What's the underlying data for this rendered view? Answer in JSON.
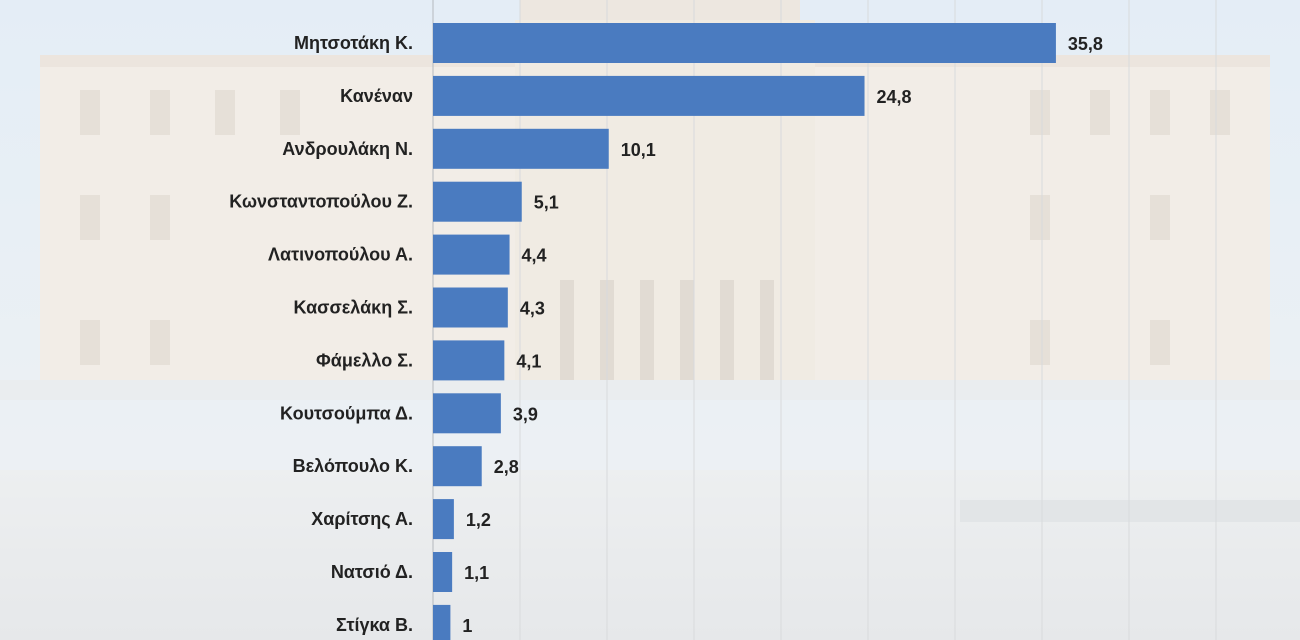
{
  "chart_data": {
    "type": "bar",
    "orientation": "horizontal",
    "categories": [
      "Μητσοτάκη Κ.",
      "Κανέναν",
      "Ανδρουλάκη Ν.",
      "Κωνσταντοπούλου Ζ.",
      "Λατινοπούλου Α.",
      "Κασσελάκη Σ.",
      "Φάμελλο Σ.",
      "Κουτσούμπα Δ.",
      "Βελόπουλο Κ.",
      "Χαρίτσης Α.",
      "Νατσιό Δ.",
      "Στίγκα Β."
    ],
    "values": [
      35.8,
      24.8,
      10.1,
      5.1,
      4.4,
      4.3,
      4.1,
      3.9,
      2.8,
      1.2,
      1.1,
      1
    ],
    "value_labels": [
      "35,8",
      "24,8",
      "10,1",
      "5,1",
      "4,4",
      "4,3",
      "4,1",
      "3,9",
      "2,8",
      "1,2",
      "1,1",
      "1"
    ],
    "xlim": [
      0,
      50
    ],
    "grid": true,
    "bar_color": "#4a7bc0",
    "title": "",
    "xlabel": "",
    "ylabel": ""
  },
  "background": {
    "icon": "parliament-building-photo"
  }
}
